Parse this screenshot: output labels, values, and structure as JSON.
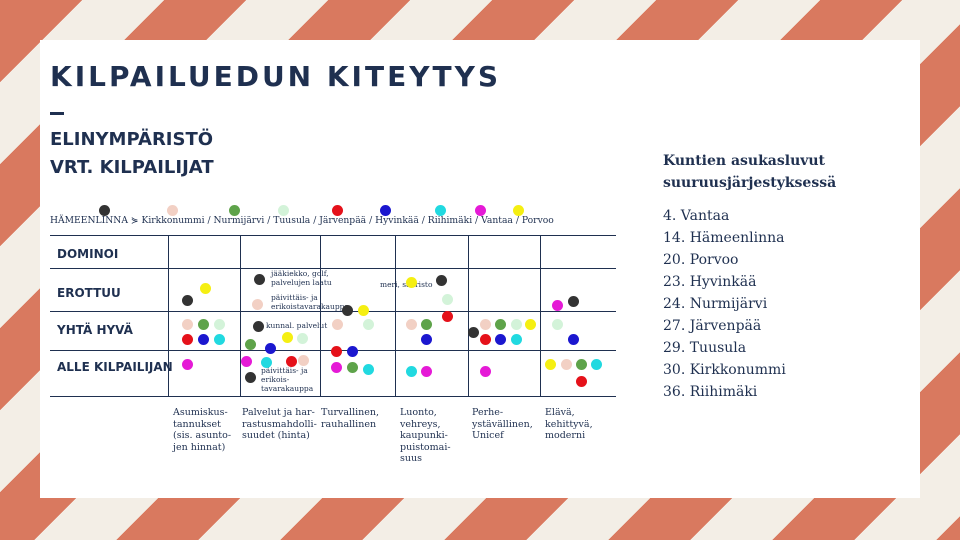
{
  "title": "KILPAILUEDUN KITEYTYS",
  "subtitle": [
    "ELINYMPÄRISTÖ",
    "VRT. KILPAILIJAT"
  ],
  "legend": {
    "text": "HÄMEENLINNA ⋟ Kirkkonummi / Nurmijärvi / Tuusula / Järvenpää / Hyvinkää / Riihimäki / Vantaa / Porvoo",
    "colors": [
      "#333333",
      "#f2d0c4",
      "#5ea34a",
      "#d3f3d9",
      "#e5111a",
      "#1b17cf",
      "#21d9e0",
      "#e51ad6",
      "#f5ef12"
    ]
  },
  "right_panel": {
    "title": [
      "Kuntien asukasluvut",
      "suuruusjärjestyksessä"
    ],
    "items": [
      "4. Vantaa",
      "14. Hämeenlinna",
      "20. Porvoo",
      "23. Hyvinkää",
      "24. Nurmijärvi",
      "27. Järvenpää",
      "29. Tuusula",
      "30. Kirkkonummi",
      "36. Riihimäki"
    ]
  },
  "rows": [
    "DOMINOI",
    "EROTTUU",
    "YHTÄ HYVÄ",
    "ALLE KILPAILIJAN"
  ],
  "columns": [
    "Asumiskus-\ntannukset\n(sis. asunto-\njen hinnat)",
    "Palvelut ja har-\nrastusmahdolli-\nsuudet (hinta)",
    "Turvallinen,\nrauhallinen",
    "Luonto,\nvehreys,\nkaupunki-\npuistomai-\nsuus",
    "Perhe-\nystävällinen,\nUnicef",
    "Elävä,\nkehittyvä,\nmoderni"
  ],
  "notes": {
    "sports": "jääkiekko, golf,\npalvelujen laatu",
    "daily_shops": "päivittäis- ja\nerikoistavarakauppa",
    "municipal": "kunnal. palvelut",
    "shops_below": "päivittäis- ja\nerikois-\ntavarakauppa",
    "sea": "meri, saaristo"
  }
}
